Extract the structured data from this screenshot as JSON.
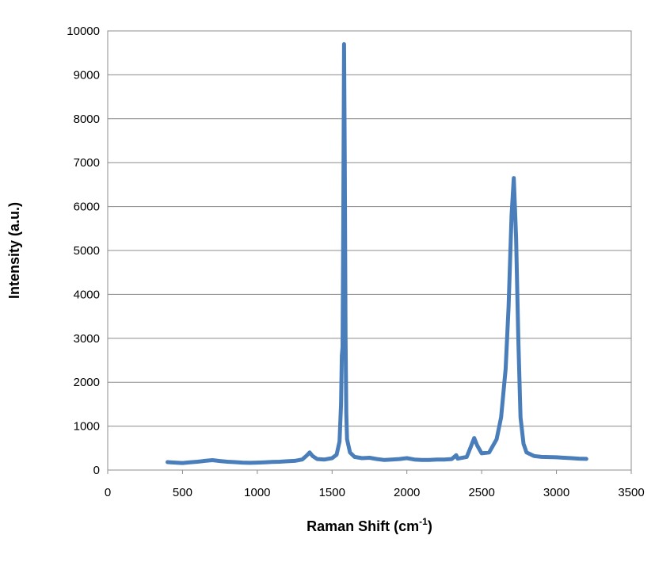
{
  "chart_data": {
    "type": "line",
    "title": "",
    "xlabel": "Raman Shift (cm",
    "xlabel_superscript": "-1",
    "xlabel_suffix": ")",
    "ylabel": "Intensity (a.u.)",
    "xlim": [
      0,
      3500
    ],
    "ylim": [
      0,
      10000
    ],
    "x_ticks": [
      0,
      500,
      1000,
      1500,
      2000,
      2500,
      3000,
      3500
    ],
    "y_ticks": [
      0,
      1000,
      2000,
      3000,
      4000,
      5000,
      6000,
      7000,
      8000,
      9000,
      10000
    ],
    "grid": "horizontal",
    "legend": "none",
    "series": [
      {
        "color": "#4a7ebb",
        "points": [
          [
            400,
            180
          ],
          [
            450,
            170
          ],
          [
            500,
            160
          ],
          [
            550,
            175
          ],
          [
            600,
            190
          ],
          [
            650,
            210
          ],
          [
            700,
            225
          ],
          [
            750,
            205
          ],
          [
            800,
            190
          ],
          [
            850,
            180
          ],
          [
            900,
            170
          ],
          [
            950,
            165
          ],
          [
            1000,
            170
          ],
          [
            1050,
            175
          ],
          [
            1100,
            185
          ],
          [
            1150,
            190
          ],
          [
            1200,
            200
          ],
          [
            1250,
            210
          ],
          [
            1300,
            240
          ],
          [
            1330,
            330
          ],
          [
            1350,
            400
          ],
          [
            1370,
            320
          ],
          [
            1400,
            250
          ],
          [
            1450,
            240
          ],
          [
            1500,
            270
          ],
          [
            1530,
            350
          ],
          [
            1550,
            650
          ],
          [
            1560,
            1500
          ],
          [
            1565,
            2600
          ],
          [
            1570,
            2800
          ],
          [
            1575,
            5500
          ],
          [
            1580,
            9700
          ],
          [
            1585,
            7000
          ],
          [
            1590,
            3000
          ],
          [
            1595,
            1300
          ],
          [
            1600,
            700
          ],
          [
            1620,
            400
          ],
          [
            1650,
            300
          ],
          [
            1700,
            270
          ],
          [
            1750,
            280
          ],
          [
            1800,
            250
          ],
          [
            1850,
            230
          ],
          [
            1900,
            240
          ],
          [
            1950,
            250
          ],
          [
            2000,
            270
          ],
          [
            2050,
            240
          ],
          [
            2100,
            230
          ],
          [
            2150,
            230
          ],
          [
            2200,
            240
          ],
          [
            2250,
            240
          ],
          [
            2300,
            250
          ],
          [
            2330,
            340
          ],
          [
            2340,
            260
          ],
          [
            2400,
            300
          ],
          [
            2430,
            550
          ],
          [
            2450,
            730
          ],
          [
            2470,
            560
          ],
          [
            2500,
            380
          ],
          [
            2550,
            400
          ],
          [
            2600,
            700
          ],
          [
            2630,
            1200
          ],
          [
            2660,
            2300
          ],
          [
            2680,
            3700
          ],
          [
            2700,
            5800
          ],
          [
            2715,
            6650
          ],
          [
            2730,
            5300
          ],
          [
            2745,
            3000
          ],
          [
            2760,
            1200
          ],
          [
            2780,
            600
          ],
          [
            2800,
            400
          ],
          [
            2850,
            320
          ],
          [
            2900,
            300
          ],
          [
            3000,
            290
          ],
          [
            3050,
            280
          ],
          [
            3100,
            270
          ],
          [
            3150,
            260
          ],
          [
            3200,
            255
          ]
        ]
      }
    ]
  }
}
